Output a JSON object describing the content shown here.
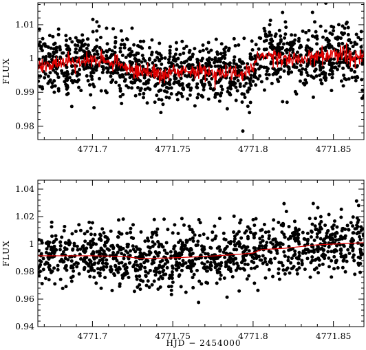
{
  "chart_data": [
    {
      "type": "scatter",
      "title": "",
      "xlabel": "",
      "ylabel": "FLUX",
      "xlim": [
        4771.666,
        4771.869
      ],
      "ylim": [
        0.976,
        1.0165
      ],
      "xticks": [
        "4771.7",
        "4771.75",
        "4771.8",
        "4771.85"
      ],
      "xtick_values": [
        4771.7,
        4771.75,
        4771.8,
        4771.85
      ],
      "yticks": [
        "0.98",
        "0.99",
        "1",
        "1.01"
      ],
      "ytick_values": [
        0.98,
        0.99,
        1.0,
        1.01
      ],
      "grid": false,
      "point_color": "#000000",
      "model_color": "#e00000",
      "scatter_sigma": 0.0045,
      "model_style": "noisy",
      "model_noise": 0.0013,
      "n_points": 1300,
      "model": {
        "x": [
          4771.666,
          4771.675,
          4771.685,
          4771.695,
          4771.705,
          4771.715,
          4771.725,
          4771.735,
          4771.745,
          4771.755,
          4771.765,
          4771.775,
          4771.785,
          4771.795,
          4771.799,
          4771.803,
          4771.81,
          4771.82,
          4771.83,
          4771.84,
          4771.85,
          4771.86,
          4771.869
        ],
        "y": [
          0.9975,
          0.9985,
          0.999,
          0.9995,
          0.9995,
          0.9985,
          0.9965,
          0.996,
          0.9955,
          0.9958,
          0.9965,
          0.996,
          0.9955,
          0.9955,
          0.9975,
          1.0003,
          1.001,
          1.0005,
          0.9998,
          1.0005,
          1.0012,
          1.0005,
          0.9995
        ]
      }
    },
    {
      "type": "scatter",
      "title": "",
      "xlabel": "HJD − 2454000",
      "ylabel": "FLUX",
      "xlim": [
        4771.666,
        4771.869
      ],
      "ylim": [
        0.94,
        1.0465
      ],
      "xticks": [
        "4771.7",
        "4771.75",
        "4771.8",
        "4771.85"
      ],
      "xtick_values": [
        4771.7,
        4771.75,
        4771.8,
        4771.85
      ],
      "yticks": [
        "0.94",
        "0.96",
        "0.98",
        "1",
        "1.02",
        "1.04"
      ],
      "ytick_values": [
        0.94,
        0.96,
        0.98,
        1.0,
        1.02,
        1.04
      ],
      "grid": false,
      "point_color": "#000000",
      "model_color": "#e00000",
      "scatter_sigma": 0.0105,
      "model_style": "smooth",
      "model_noise": 0,
      "n_points": 1150,
      "model": {
        "x": [
          4771.666,
          4771.7,
          4771.72,
          4771.73,
          4771.75,
          4771.77,
          4771.79,
          4771.8,
          4771.805,
          4771.82,
          4771.84,
          4771.869
        ],
        "y": [
          0.9915,
          0.9915,
          0.991,
          0.9895,
          0.99,
          0.991,
          0.9925,
          0.9935,
          0.996,
          0.997,
          0.9995,
          1.001
        ]
      }
    }
  ]
}
